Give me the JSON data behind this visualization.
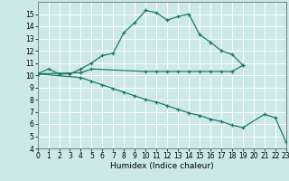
{
  "xlabel": "Humidex (Indice chaleur)",
  "bg_color": "#cce8e8",
  "grid_color": "#ffffff",
  "line_color": "#1a7a6e",
  "line1_x": [
    0,
    1,
    2,
    3,
    4,
    5,
    6,
    7,
    8,
    9,
    10,
    11,
    12,
    13,
    14,
    15,
    16,
    17,
    18,
    19
  ],
  "line1_y": [
    10.1,
    10.5,
    10.1,
    10.1,
    10.5,
    11.0,
    11.6,
    11.8,
    13.5,
    14.3,
    15.3,
    15.1,
    14.5,
    14.8,
    15.0,
    13.3,
    12.7,
    12.0,
    11.7,
    10.8
  ],
  "line2_x": [
    0,
    4,
    5,
    10,
    11,
    12,
    13,
    14,
    15,
    16,
    17,
    18,
    19
  ],
  "line2_y": [
    10.1,
    10.2,
    10.5,
    10.3,
    10.3,
    10.3,
    10.3,
    10.3,
    10.3,
    10.3,
    10.3,
    10.3,
    10.8
  ],
  "line3_x": [
    0,
    4,
    5,
    6,
    7,
    8,
    9,
    10,
    11,
    12,
    13,
    14,
    15,
    16,
    17,
    18,
    19,
    21,
    22,
    23
  ],
  "line3_y": [
    10.1,
    9.8,
    9.5,
    9.2,
    8.9,
    8.6,
    8.3,
    8.0,
    7.8,
    7.5,
    7.2,
    6.9,
    6.7,
    6.4,
    6.2,
    5.9,
    5.7,
    6.8,
    6.5,
    4.5
  ],
  "xlim": [
    0,
    23
  ],
  "ylim": [
    4,
    16
  ],
  "yticks": [
    4,
    5,
    6,
    7,
    8,
    9,
    10,
    11,
    12,
    13,
    14,
    15
  ],
  "xticks": [
    0,
    1,
    2,
    3,
    4,
    5,
    6,
    7,
    8,
    9,
    10,
    11,
    12,
    13,
    14,
    15,
    16,
    17,
    18,
    19,
    20,
    21,
    22,
    23
  ],
  "xlabel_fontsize": 6.5,
  "tick_fontsize": 5.5
}
